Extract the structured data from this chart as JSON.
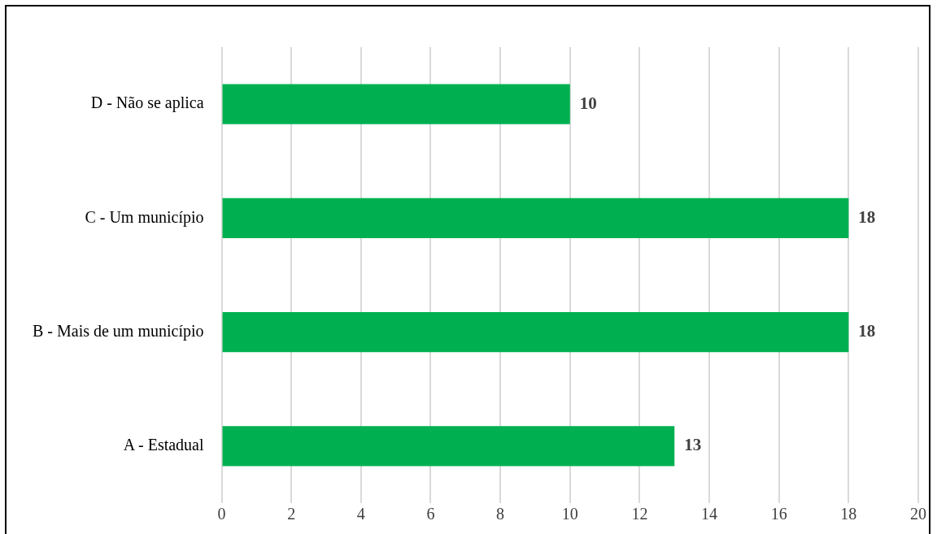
{
  "chart_data": {
    "type": "bar",
    "orientation": "horizontal",
    "categories": [
      "D - Não se aplica",
      "C - Um município",
      "B - Mais de um município",
      "A - Estadual"
    ],
    "values": [
      10,
      18,
      18,
      13
    ],
    "color": "#00b050",
    "xlim": [
      0,
      20
    ],
    "xticks": [
      0,
      2,
      4,
      6,
      8,
      10,
      12,
      14,
      16,
      18,
      20
    ],
    "grid": "x",
    "legend": false,
    "data_labels": true
  }
}
